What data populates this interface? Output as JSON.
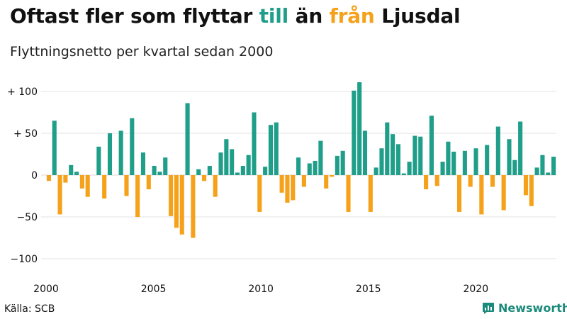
{
  "title": {
    "part1": "Oftast fler som flyttar",
    "till": "till",
    "middle": "än",
    "fran": "från",
    "part2": "Ljusdal"
  },
  "subtitle": "Flyttningsnetto per kvartal sedan 2000",
  "source": "Källa: SCB",
  "logo": {
    "text": "Newsworthy",
    "icon": "newsworthy-chart-icon"
  },
  "colors": {
    "positive": "#1f9e89",
    "negative": "#f5a11a",
    "till": "#1f9e89",
    "fran": "#f5a11a",
    "grid": "#e3e3e3",
    "logo": "#1a8a7a"
  },
  "chart_data": {
    "type": "bar",
    "title": "Oftast fler som flyttar till än från Ljusdal",
    "subtitle": "Flyttningsnetto per kvartal sedan 2000",
    "xlabel": "",
    "ylabel": "",
    "xlim": [
      2000,
      2023.75
    ],
    "ylim": [
      -110,
      115
    ],
    "grid": true,
    "y_ticks": [
      {
        "value": 100,
        "label": "+ 100"
      },
      {
        "value": 50,
        "label": "+  50"
      },
      {
        "value": 0,
        "label": "0"
      },
      {
        "value": -50,
        "label": "−50"
      },
      {
        "value": -100,
        "label": "−100"
      }
    ],
    "x_ticks": [
      {
        "value": 2000,
        "label": "2000"
      },
      {
        "value": 2005,
        "label": "2005"
      },
      {
        "value": 2010,
        "label": "2010"
      },
      {
        "value": 2015,
        "label": "2015"
      },
      {
        "value": 2020,
        "label": "2020"
      }
    ],
    "start_year": 2000,
    "values": [
      -7,
      65,
      -47,
      -9,
      12,
      4,
      -16,
      -26,
      0,
      34,
      -28,
      50,
      0,
      53,
      -25,
      68,
      -50,
      27,
      -17,
      11,
      4,
      21,
      -49,
      -63,
      -71,
      86,
      -75,
      7,
      -7,
      11,
      -26,
      27,
      43,
      31,
      3,
      11,
      24,
      75,
      -44,
      10,
      60,
      63,
      -21,
      -33,
      -30,
      21,
      -14,
      14,
      17,
      41,
      -16,
      -2,
      23,
      29,
      -44,
      101,
      111,
      53,
      -44,
      9,
      32,
      63,
      49,
      37,
      2,
      16,
      47,
      46,
      -17,
      71,
      -13,
      16,
      40,
      28,
      -44,
      29,
      -14,
      32,
      -47,
      36,
      -14,
      58,
      -42,
      43,
      18,
      64,
      -24,
      -37,
      9,
      24,
      3,
      22
    ]
  }
}
